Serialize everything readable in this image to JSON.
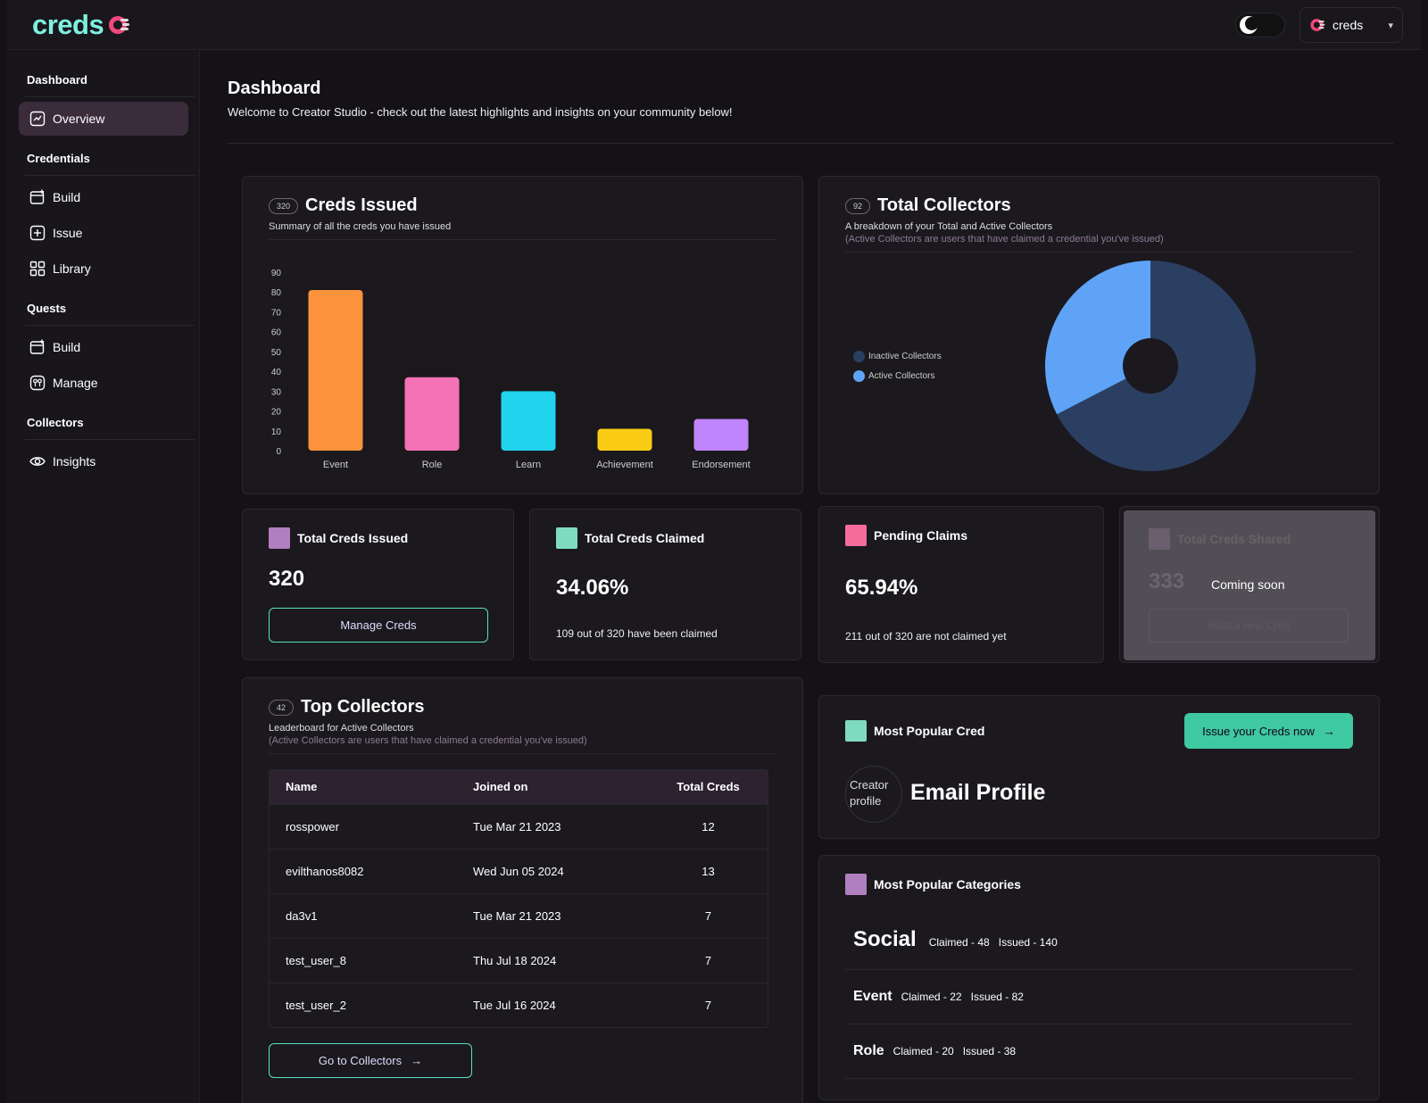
{
  "app": {
    "logo": "creds",
    "org": "creds"
  },
  "sidebar": {
    "sections": [
      {
        "title": "Dashboard",
        "items": [
          {
            "label": "Overview",
            "icon": "chart-line-icon"
          }
        ]
      },
      {
        "title": "Credentials",
        "items": [
          {
            "label": "Build",
            "icon": "card-plus-icon"
          },
          {
            "label": "Issue",
            "icon": "plus-square-icon"
          },
          {
            "label": "Library",
            "icon": "grid-icon"
          }
        ]
      },
      {
        "title": "Quests",
        "items": [
          {
            "label": "Build",
            "icon": "card-plus-icon"
          },
          {
            "label": "Manage",
            "icon": "manage-icon"
          }
        ]
      },
      {
        "title": "Collectors",
        "items": [
          {
            "label": "Insights",
            "icon": "eye-icon"
          }
        ]
      }
    ]
  },
  "header": {
    "title": "Dashboard",
    "subtitle": "Welcome to Creator Studio - check out the latest highlights and insights on your community below!"
  },
  "creds_issued": {
    "badge": "320",
    "title": "Creds Issued",
    "subtitle": "Summary of all the creds you have issued"
  },
  "total_collectors": {
    "badge": "92",
    "title": "Total Collectors",
    "subtitle": "A breakdown of your Total and Active Collectors",
    "note": "(Active Collectors are users that have claimed a credential you've issued)"
  },
  "chart_data": [
    {
      "type": "bar",
      "categories": [
        "Event",
        "Role",
        "Learn",
        "Achievement",
        "Endorsement"
      ],
      "values": [
        81,
        37,
        30,
        11,
        16
      ],
      "colors": [
        "#fb923c",
        "#f472b6",
        "#22d3ee",
        "#facc15",
        "#c084fc"
      ],
      "ylim": [
        0,
        90
      ],
      "yticks": [
        0,
        10,
        20,
        30,
        40,
        50,
        60,
        70,
        80,
        90
      ],
      "grid": false
    },
    {
      "type": "pie",
      "donut": true,
      "series": [
        {
          "name": "Inactive Collectors",
          "value": 62,
          "color": "#2b3f62"
        },
        {
          "name": "Active Collectors",
          "value": 30,
          "color": "#5ea3f6"
        }
      ],
      "legend": "left"
    }
  ],
  "stats": {
    "issued": {
      "title": "Total Creds Issued",
      "value": "320",
      "button": "Manage Creds",
      "color": "#b07fc0"
    },
    "claimed": {
      "title": "Total Creds Claimed",
      "value": "34.06%",
      "note": "109 out of 320 have been claimed",
      "color": "#7fdbc0"
    },
    "pending": {
      "title": "Pending Claims",
      "value": "65.94%",
      "note": "211 out of 320 are not claimed yet",
      "color": "#f56b9a"
    },
    "shared": {
      "title": "Total Creds Shared",
      "value": "333",
      "button": "Build a new Cred",
      "overlay": "Coming soon"
    }
  },
  "top_collectors": {
    "badge": "42",
    "title": "Top Collectors",
    "subtitle": "Leaderboard for Active Collectors",
    "note": "(Active Collectors are users that have claimed a credential you've issued)",
    "columns": [
      "Name",
      "Joined on",
      "Total Creds"
    ],
    "rows": [
      [
        "rosspower",
        "Tue Mar 21 2023",
        "12"
      ],
      [
        "evilthanos8082",
        "Wed Jun 05 2024",
        "13"
      ],
      [
        "da3v1",
        "Tue Mar 21 2023",
        "7"
      ],
      [
        "test_user_8",
        "Thu Jul 18 2024",
        "7"
      ],
      [
        "test_user_2",
        "Tue Jul 16 2024",
        "7"
      ]
    ],
    "button": "Go to Collectors"
  },
  "popular_cred": {
    "title": "Most Popular Cred",
    "button": "Issue your Creds now",
    "image_alt": "Creator profile",
    "name": "Email Profile"
  },
  "popular_categories": {
    "title": "Most Popular Categories",
    "items": [
      {
        "name": "Social",
        "claimed": "Claimed - 48",
        "issued": "Issued - 140"
      },
      {
        "name": "Event",
        "claimed": "Claimed - 22",
        "issued": "Issued - 82"
      },
      {
        "name": "Role",
        "claimed": "Claimed - 20",
        "issued": "Issued - 38"
      }
    ]
  }
}
